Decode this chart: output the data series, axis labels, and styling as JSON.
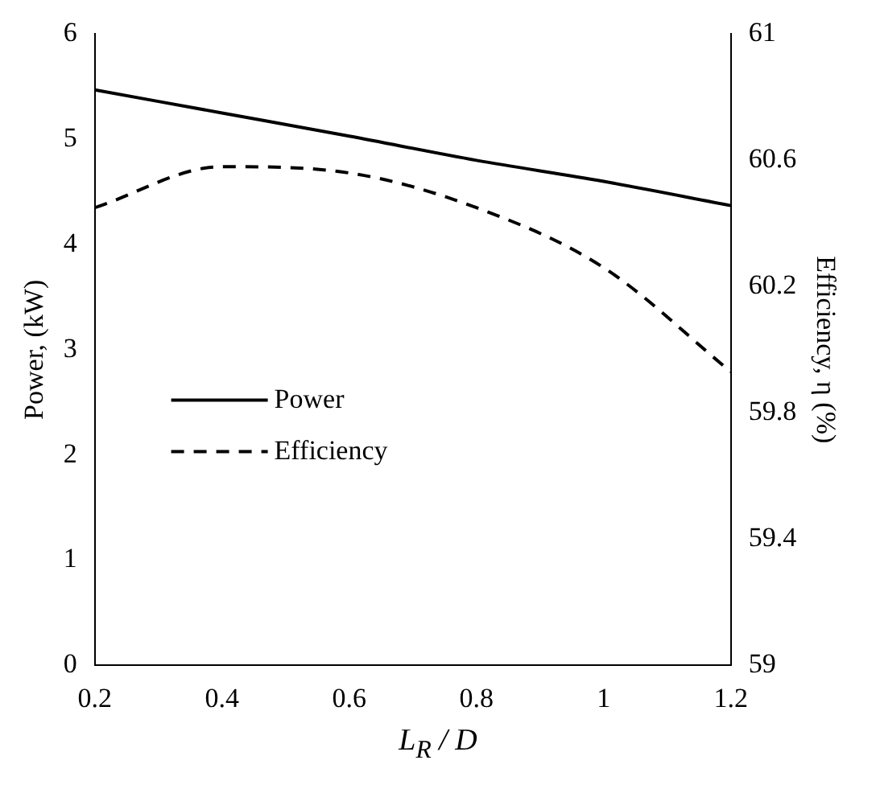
{
  "chart_data": {
    "type": "line",
    "xlabel": "L$_{R}$ / D",
    "ylabel": "Power, (kW)",
    "y2label": "Efficiency, η (%)",
    "x": [
      0.2,
      0.4,
      0.6,
      0.8,
      1.0,
      1.2
    ],
    "series": [
      {
        "name": "Power",
        "color": "#000000",
        "values": [
          5.47,
          5.25,
          5.03,
          4.8,
          4.6,
          4.37
        ],
        "line_style": "solid"
      },
      {
        "name": "Efficiency",
        "color": "#000000",
        "axis": "y2",
        "values": [
          60.45,
          60.58,
          60.56,
          60.45,
          60.26,
          59.93
        ],
        "line_style": "dashed"
      }
    ],
    "xlim": [
      0.2,
      1.2
    ],
    "xticks": [
      0.2,
      0.4,
      0.6,
      0.8,
      1,
      1.2
    ],
    "ylim": [
      0,
      6
    ],
    "yticks": [
      0,
      1,
      2,
      3,
      4,
      5,
      6
    ],
    "y2lim": [
      59,
      61
    ],
    "y2ticks": [
      59,
      59.4,
      59.8,
      60.2,
      60.6,
      61
    ],
    "grid": false,
    "legend": "left",
    "marker": "none"
  }
}
